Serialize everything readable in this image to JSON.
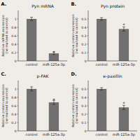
{
  "chart_data": [
    {
      "type": "bar",
      "title": "Pyn mRNA",
      "ylabel": "Relative mRNA expression\n(normalized to control)",
      "categories": [
        "control",
        "miR-125a-3p"
      ],
      "values": [
        1.0,
        0.18
      ],
      "errors": [
        0.04,
        0.03
      ],
      "color": "#707070",
      "ylim": [
        0,
        1.2
      ],
      "yticks": [
        0,
        0.2,
        0.4,
        0.6,
        0.8,
        1.0
      ],
      "grid": false,
      "annotations": [
        {
          "text": "A."
        },
        {
          "text": "*",
          "category": "miR-125a-3p",
          "y": 0.23
        }
      ]
    },
    {
      "type": "bar",
      "title": "Pyn protein",
      "ylabel": "Relative protein expression\n(normalized to control)",
      "categories": [
        "control",
        "miR-125a-3p"
      ],
      "values": [
        0.5,
        0.38
      ],
      "errors": [
        0.015,
        0.025
      ],
      "color": "#707070",
      "ylim": [
        0,
        0.6
      ],
      "yticks": [
        0,
        0.1,
        0.2,
        0.3,
        0.4,
        0.5
      ],
      "grid": false,
      "annotations": [
        {
          "text": "B."
        },
        {
          "text": "*",
          "category": "miR-125a-3p",
          "y": 0.44
        }
      ]
    },
    {
      "type": "bar",
      "title": "p-FAK",
      "ylabel": "Relative protein expression\n(normalized to control)",
      "categories": [
        "control",
        "miR-125a-3p"
      ],
      "values": [
        1.0,
        0.68
      ],
      "errors": [
        0.05,
        0.05
      ],
      "color": "#707070",
      "ylim": [
        0,
        1.2
      ],
      "yticks": [
        0,
        0.2,
        0.4,
        0.6,
        0.8,
        1.0
      ],
      "grid": false,
      "annotations": [
        {
          "text": "C."
        },
        {
          "text": "*",
          "category": "miR-125a-3p",
          "y": 0.77
        }
      ]
    },
    {
      "type": "bar",
      "title": "e-paxillin",
      "ylabel": "Relative protein expression\n(normalized to control)",
      "categories": [
        "control",
        "miR-125a-3p"
      ],
      "values": [
        0.5,
        0.28
      ],
      "errors": [
        0.015,
        0.025
      ],
      "color": "#707070",
      "ylim": [
        0,
        0.6
      ],
      "yticks": [
        0,
        0.1,
        0.2,
        0.3,
        0.4,
        0.5
      ],
      "grid": false,
      "annotations": [
        {
          "text": "D."
        },
        {
          "text": "*",
          "category": "miR-125a-3p",
          "y": 0.34
        }
      ]
    }
  ]
}
